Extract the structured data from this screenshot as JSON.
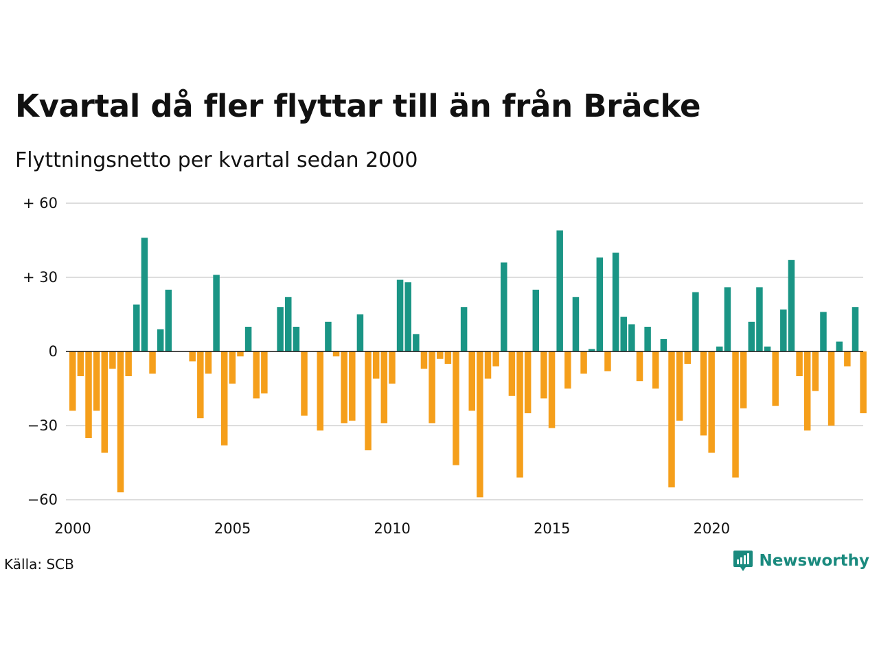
{
  "title": "Kvartal då fler flyttar till än från Bräcke",
  "subtitle": "Flyttningsnetto per kvartal sedan 2000",
  "source": "Källa: SCB",
  "brand": {
    "name": "Newsworthy",
    "logo_icon": "newsworthy-bar-chart-icon"
  },
  "colors": {
    "positive": "#1a9585",
    "negative": "#f59f1b",
    "grid": "#dddddd",
    "zero": "#111111"
  },
  "chart_data": {
    "type": "bar",
    "title": "Kvartal då fler flyttar till än från Bräcke",
    "subtitle": "Flyttningsnetto per kvartal sedan 2000",
    "xlabel": "",
    "ylabel": "",
    "ylim": [
      -60,
      60
    ],
    "y_ticks": [
      60,
      30,
      0,
      -30,
      -60
    ],
    "y_tick_labels": [
      "+ 60",
      "+ 30",
      "0",
      "−30",
      "−60"
    ],
    "x_ticks": [
      2000,
      2005,
      2010,
      2015,
      2020
    ],
    "x_tick_labels": [
      "2000",
      "2005",
      "2010",
      "2015",
      "2020"
    ],
    "x_start": "2000 Q1",
    "grid": true,
    "values": [
      -24,
      -10,
      -35,
      -24,
      -41,
      -7,
      -57,
      -10,
      19,
      46,
      -9,
      9,
      25,
      0,
      0,
      -4,
      -27,
      -9,
      31,
      -38,
      -13,
      -2,
      10,
      -19,
      -17,
      0,
      18,
      22,
      10,
      -26,
      0,
      -32,
      12,
      -2,
      -29,
      -28,
      15,
      -40,
      -11,
      -29,
      -13,
      29,
      28,
      7,
      -7,
      -29,
      -3,
      -5,
      -46,
      18,
      -24,
      -59,
      -11,
      -6,
      36,
      -18,
      -51,
      -25,
      25,
      -19,
      -31,
      49,
      -15,
      22,
      -9,
      1,
      38,
      -8,
      40,
      14,
      11,
      -12,
      10,
      -15,
      5,
      -55,
      -28,
      -5,
      24,
      -34,
      -41,
      2,
      26,
      -51,
      -23,
      12,
      26,
      2,
      -22,
      17,
      37,
      -10,
      -32,
      -16,
      16,
      -30,
      4,
      -6,
      18,
      -25
    ]
  }
}
